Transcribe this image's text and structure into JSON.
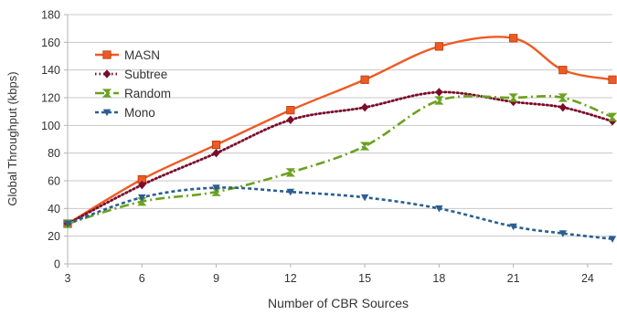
{
  "chart_data": {
    "type": "line",
    "title": "",
    "xlabel": "Number of CBR Sources",
    "ylabel": "Global Throughput (kbps)",
    "xlim": [
      3,
      25
    ],
    "ylim": [
      0,
      180
    ],
    "x_ticks": [
      3,
      6,
      9,
      12,
      15,
      18,
      21,
      24
    ],
    "y_ticks": [
      0,
      20,
      40,
      60,
      80,
      100,
      120,
      140,
      160,
      180
    ],
    "grid": "horizontal",
    "legend_position": "top-left",
    "series": [
      {
        "name": "MASN",
        "color": "#ee5a24",
        "line_style": "solid",
        "marker": "square",
        "x": [
          3,
          6,
          9,
          12,
          15,
          18,
          21,
          23,
          25
        ],
        "y": [
          29,
          61,
          86,
          111,
          133,
          157,
          163,
          140,
          133
        ]
      },
      {
        "name": "Subtree",
        "color": "#7b0b2a",
        "line_style": "dotted",
        "marker": "diamond",
        "x": [
          3,
          6,
          9,
          12,
          15,
          18,
          21,
          23,
          25
        ],
        "y": [
          29,
          57,
          80,
          104,
          113,
          124,
          117,
          113,
          103
        ]
      },
      {
        "name": "Random",
        "color": "#6aa121",
        "line_style": "dash-dot",
        "marker": "hourglass",
        "x": [
          3,
          6,
          9,
          12,
          15,
          18,
          21,
          23,
          25
        ],
        "y": [
          29,
          45,
          52,
          66,
          85,
          118,
          120,
          120,
          106
        ]
      },
      {
        "name": "Mono",
        "color": "#2b5e91",
        "line_style": "dashed",
        "marker": "triangle-down",
        "x": [
          3,
          6,
          9,
          12,
          15,
          18,
          21,
          23,
          25
        ],
        "y": [
          29,
          48,
          55,
          52,
          48,
          40,
          27,
          22,
          18
        ]
      }
    ]
  }
}
